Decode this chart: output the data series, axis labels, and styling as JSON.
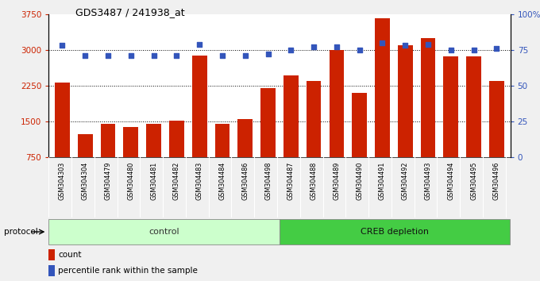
{
  "title": "GDS3487 / 241938_at",
  "samples": [
    "GSM304303",
    "GSM304304",
    "GSM304479",
    "GSM304480",
    "GSM304481",
    "GSM304482",
    "GSM304483",
    "GSM304484",
    "GSM304486",
    "GSM304498",
    "GSM304487",
    "GSM304488",
    "GSM304489",
    "GSM304490",
    "GSM304491",
    "GSM304492",
    "GSM304493",
    "GSM304494",
    "GSM304495",
    "GSM304496"
  ],
  "counts": [
    2320,
    1230,
    1460,
    1390,
    1450,
    1520,
    2880,
    1460,
    1550,
    2200,
    2460,
    2350,
    3000,
    2100,
    3660,
    3100,
    3240,
    2870,
    2870,
    2350
  ],
  "percentile_ranks": [
    78,
    71,
    71,
    71,
    71,
    71,
    79,
    71,
    71,
    72,
    75,
    77,
    77,
    75,
    80,
    78,
    79,
    75,
    75,
    76
  ],
  "control_count": 10,
  "creb_count": 10,
  "ylim_left": [
    750,
    3750
  ],
  "ylim_right": [
    0,
    100
  ],
  "yticks_left": [
    750,
    1500,
    2250,
    3000,
    3750
  ],
  "yticks_right": [
    0,
    25,
    50,
    75,
    100
  ],
  "bar_color": "#cc2200",
  "dot_color": "#3355bb",
  "control_color": "#ccffcc",
  "creb_color": "#44cc44",
  "sample_bg": "#c8c8c8",
  "plot_bg": "#ffffff",
  "fig_bg": "#f0f0f0",
  "protocol_label": "protocol",
  "control_label": "control",
  "creb_label": "CREB depletion",
  "legend_count_label": "count",
  "legend_pct_label": "percentile rank within the sample",
  "grid_hlines": [
    1500,
    2250,
    3000
  ]
}
